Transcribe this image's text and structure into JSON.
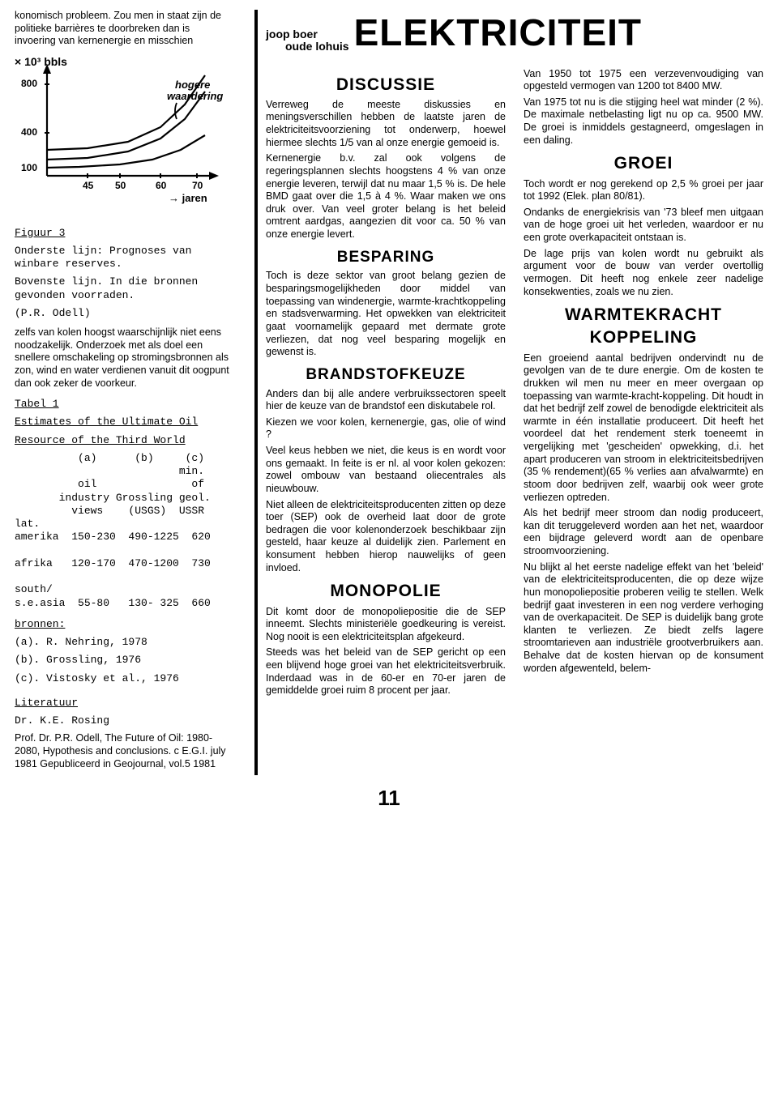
{
  "leftIntro": "konomisch probleem. Zou men in staat zijn de politieke barrières te doorbreken dan is invoering van kernenergie en misschien",
  "chart": {
    "ylabel": "× 10³ bbls",
    "xTicks": [
      "45",
      "50",
      "60",
      "70"
    ],
    "xArrowLabel": "→ jaren",
    "yTicks": [
      "800",
      "400",
      "100"
    ],
    "annot1": "hogere",
    "annot2": "waardering",
    "topLine": [
      [
        40,
        118
      ],
      [
        90,
        116
      ],
      [
        140,
        108
      ],
      [
        180,
        90
      ],
      [
        210,
        62
      ],
      [
        235,
        26
      ]
    ],
    "midLine": [
      [
        40,
        130
      ],
      [
        90,
        128
      ],
      [
        140,
        120
      ],
      [
        180,
        104
      ],
      [
        210,
        80
      ],
      [
        235,
        46
      ]
    ],
    "lowLine": [
      [
        40,
        140
      ],
      [
        80,
        139
      ],
      [
        130,
        136
      ],
      [
        170,
        130
      ],
      [
        205,
        118
      ],
      [
        235,
        100
      ]
    ],
    "stroke": "#000000",
    "linewidth": 2.2
  },
  "figureLabel": "Figuur 3",
  "figureCaption1": "Onderste lijn: Prognoses van winbare reserves.",
  "figureCaption2": "Bovenste lijn. In die bronnen gevonden voorraden.",
  "figureCaption3": "(P.R. Odell)",
  "leftCont": "zelfs van kolen hoogst waarschijnlijk niet eens noodzakelijk. Onderzoek met als doel een snellere omschakeling op stromingsbronnen als zon, wind en water verdienen vanuit dit oogpunt dan ook zeker de voorkeur.",
  "tableLabel": "Tabel 1",
  "tableTitle1": "Estimates of the Ultimate Oil",
  "tableTitle2": "Resource of the Third World",
  "tableColsLine1": "          (a)      (b)     (c)",
  "tableColsLine2": "                          min.",
  "tableColsLine3": "          oil               of",
  "tableColsLine4": "       industry Grossling geol.",
  "tableColsLine5": "         views    (USGS)  USSR",
  "tableRow0": "lat.",
  "tableRow1": "amerika  150-230  490-1225  620",
  "tableRowGap1": "",
  "tableRow2": "afrika   120-170  470-1200  730",
  "tableRowGap2": "",
  "tableRow3a": "south/",
  "tableRow3b": "s.e.asia  55-80   130- 325  660",
  "sourcesLabel": "bronnen:",
  "source_a": "(a). R. Nehring, 1978",
  "source_b": "(b). Grossling, 1976",
  "source_c": "(c). Vistosky et al., 1976",
  "litLabel": "Literatuur",
  "lit1": "Dr. K.E. Rosing",
  "lit2": "Prof. Dr. P.R. Odell, The Future of Oil: 1980-2080, Hypothesis and conclusions. c E.G.I. july 1981 Gepubliceerd in Geojournal, vol.5 1981",
  "byline1": "joop boer",
  "byline2": "oude lohuis",
  "mainTitle": "ELEKTRICITEIT",
  "h_discussie": "DISCUSSIE",
  "p_disc1": "Verreweg de meeste diskussies en meningsverschillen hebben de laatste jaren de elektriciteitsvoorziening tot onderwerp, hoewel hiermee slechts 1/5 van al onze energie gemoeid is.",
  "p_disc2": "Kernenergie b.v. zal ook volgens de regeringsplannen slechts hoogstens 4 % van onze energie leveren, terwijl dat nu maar 1,5 % is. De hele BMD gaat over die 1,5 à 4 %. Waar maken we ons druk over. Van veel groter belang is het beleid omtrent aardgas, aangezien dit voor ca. 50 % van onze energie levert.",
  "h_besparing": "BESPARING",
  "p_besp": "Toch is deze sektor van groot belang gezien de besparingsmogelijkheden door middel van toepassing van windenergie, warmte-krachtkoppeling en stadsverwarming. Het opwekken van elektriciteit gaat voornamelijk gepaard met dermate grote verliezen, dat nog veel besparing mogelijk en gewenst is.",
  "h_brandstof": "BRANDSTOFKEUZE",
  "p_brand1": "Anders dan bij alle andere verbruikssectoren speelt hier de keuze van de brandstof een diskutabele rol.",
  "p_brand2": "Kiezen we voor kolen, kernenergie, gas, olie of wind ?",
  "p_brand3": "Veel keus hebben we niet, die keus is en wordt voor ons gemaakt. In feite is er nl. al voor kolen gekozen: zowel ombouw van bestaand oliecentrales als nieuwbouw.",
  "p_brand4": "Niet alleen de elektriciteitsproducenten zitten op deze toer (SEP) ook de overheid laat door de grote bedragen die voor kolenonderzoek beschikbaar zijn gesteld, haar keuze al duidelijk zien. Parlement en konsument hebben hierop nauwelijks of geen invloed.",
  "h_monopolie": "MONOPOLIE",
  "p_mono1": "Dit komt door de monopoliepositie die de SEP inneemt. Slechts ministeriële goedkeuring is vereist. Nog nooit is een elektriciteitsplan afgekeurd.",
  "p_mono2": "Steeds was het beleid van de SEP gericht op een een blijvend hoge groei van het elektriciteitsverbruik. Inderdaad was in de 60-er en 70-er jaren de gemiddelde groei ruim 8 procent per jaar.",
  "p_col2a": "Van 1950 tot 1975 een verzevenvoudiging van opgesteld vermogen van 1200 tot 8400 MW.",
  "p_col2b": "Van 1975 tot nu is die stijging heel wat minder (2 %). De maximale netbelasting ligt nu op ca. 9500 MW. De groei is inmiddels gestagneerd, omgeslagen in een daling.",
  "h_groei": "GROEI",
  "p_groei1": "Toch wordt er nog gerekend op 2,5 % groei per jaar tot 1992 (Elek. plan 80/81).",
  "p_groei2": "Ondanks de energiekrisis van '73 bleef men uitgaan van de hoge groei uit het verleden, waardoor er nu een grote overkapaciteit ontstaan is.",
  "p_groei3": "De lage prijs van kolen wordt nu gebruikt als argument voor de bouw van verder overtollig vermogen. Dit heeft nog enkele zeer nadelige konsekwenties, zoals we nu zien.",
  "h_wk1": "WARMTEKRACHT",
  "h_wk2": "KOPPELING",
  "p_wk1": "Een groeiend aantal bedrijven ondervindt nu de gevolgen van de te dure energie. Om de kosten te drukken wil men nu meer en meer overgaan op toepassing van warmte-kracht-koppeling. Dit houdt in dat het bedrijf zelf zowel de benodigde elektriciteit als warmte in één installatie produceert. Dit heeft het voordeel dat het rendement sterk toeneemt in vergelijking met 'gescheiden' opwekking, d.i. het apart produceren van stroom in elektriciteitsbedrijven (35 % rendement)(65 % verlies aan afvalwarmte) en stoom door bedrijven zelf, waarbij ook weer grote verliezen optreden.",
  "p_wk2": "Als het bedrijf meer stroom dan nodig produceert, kan dit teruggeleverd worden aan het net, waardoor een bijdrage geleverd wordt aan de openbare stroomvoorziening.",
  "p_wk3": "Nu blijkt al het eerste nadelige effekt van het 'beleid' van de elektriciteitsproducenten, die op deze wijze hun monopoliepositie proberen veilig te stellen. Welk bedrijf gaat investeren in een nog verdere verhoging van de overkapaciteit. De SEP is duidelijk bang grote klanten te verliezen. Ze biedt zelfs lagere stroomtarieven aan industriële grootverbruikers aan. Behalve dat de kosten hiervan op de konsument worden afgewenteld, belem-",
  "pageNumber": "11"
}
